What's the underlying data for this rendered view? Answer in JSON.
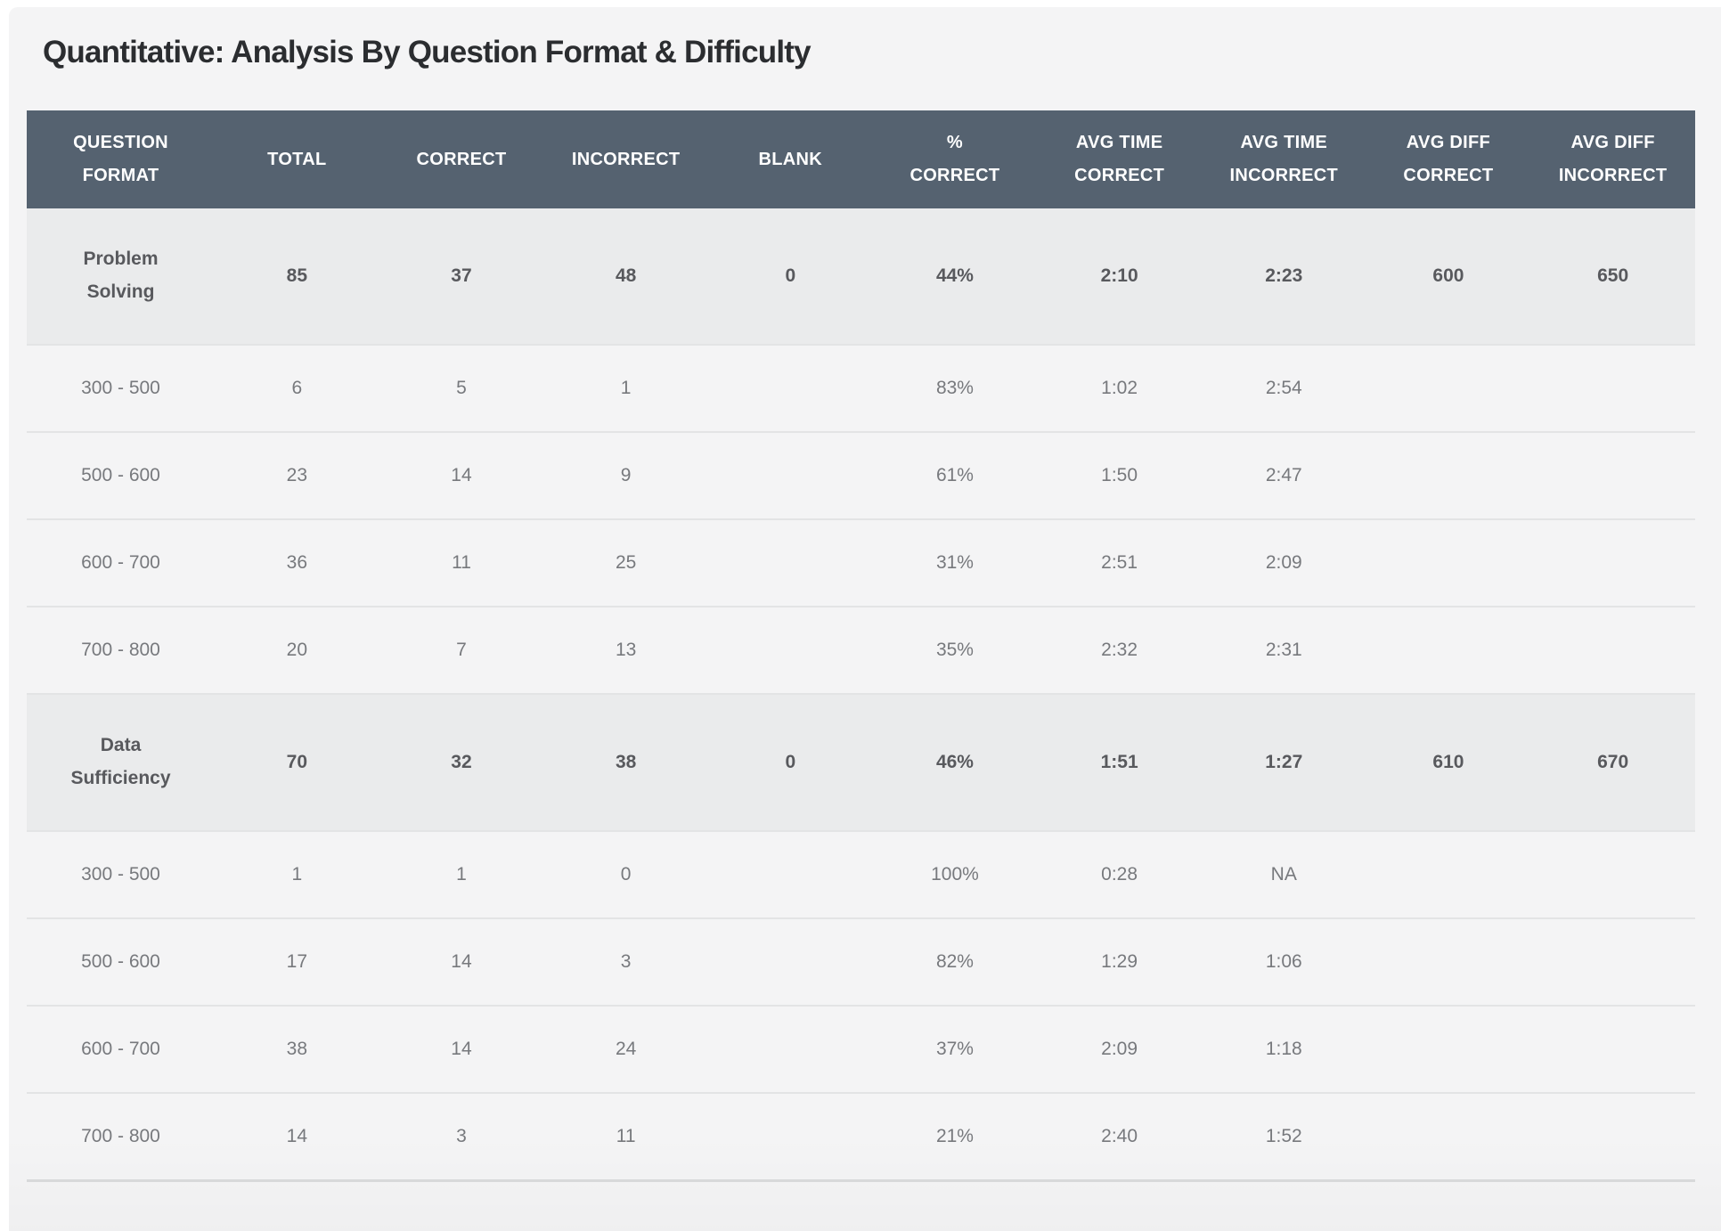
{
  "title": "Quantitative: Analysis By Question Format & Difficulty",
  "theme": {
    "header_bg": "#556270",
    "header_text": "#ffffff",
    "group_row_bg": "#eaebec",
    "group_row_text": "#58595d",
    "sub_row_text": "#77797d",
    "page_bg": "#f4f4f5",
    "divider": "#e3e4e5",
    "table_bottom_border": "#d8d9da",
    "title_text": "#2b2d30"
  },
  "table": {
    "columns": [
      {
        "label": "QUESTION\nFORMAT"
      },
      {
        "label": "TOTAL"
      },
      {
        "label": "CORRECT"
      },
      {
        "label": "INCORRECT"
      },
      {
        "label": "BLANK"
      },
      {
        "label": "%\nCORRECT"
      },
      {
        "label": "AVG TIME\nCORRECT"
      },
      {
        "label": "AVG TIME\nINCORRECT"
      },
      {
        "label": "AVG DIFF\nCORRECT"
      },
      {
        "label": "AVG DIFF\nINCORRECT"
      }
    ],
    "rows": [
      {
        "type": "group",
        "label": "Problem\nSolving",
        "cells": [
          "85",
          "37",
          "48",
          "0",
          "44%",
          "2:10",
          "2:23",
          "600",
          "650"
        ]
      },
      {
        "type": "sub",
        "label": "300 - 500",
        "cells": [
          "6",
          "5",
          "1",
          "",
          "83%",
          "1:02",
          "2:54",
          "",
          ""
        ]
      },
      {
        "type": "sub",
        "label": "500 - 600",
        "cells": [
          "23",
          "14",
          "9",
          "",
          "61%",
          "1:50",
          "2:47",
          "",
          ""
        ]
      },
      {
        "type": "sub",
        "label": "600 - 700",
        "cells": [
          "36",
          "11",
          "25",
          "",
          "31%",
          "2:51",
          "2:09",
          "",
          ""
        ]
      },
      {
        "type": "sub",
        "label": "700 - 800",
        "cells": [
          "20",
          "7",
          "13",
          "",
          "35%",
          "2:32",
          "2:31",
          "",
          ""
        ]
      },
      {
        "type": "group",
        "label": "Data\nSufficiency",
        "cells": [
          "70",
          "32",
          "38",
          "0",
          "46%",
          "1:51",
          "1:27",
          "610",
          "670"
        ]
      },
      {
        "type": "sub",
        "label": "300 - 500",
        "cells": [
          "1",
          "1",
          "0",
          "",
          "100%",
          "0:28",
          "NA",
          "",
          ""
        ]
      },
      {
        "type": "sub",
        "label": "500 - 600",
        "cells": [
          "17",
          "14",
          "3",
          "",
          "82%",
          "1:29",
          "1:06",
          "",
          ""
        ]
      },
      {
        "type": "sub",
        "label": "600 - 700",
        "cells": [
          "38",
          "14",
          "24",
          "",
          "37%",
          "2:09",
          "1:18",
          "",
          ""
        ]
      },
      {
        "type": "sub",
        "label": "700 - 800",
        "cells": [
          "14",
          "3",
          "11",
          "",
          "21%",
          "2:40",
          "1:52",
          "",
          ""
        ]
      }
    ]
  }
}
